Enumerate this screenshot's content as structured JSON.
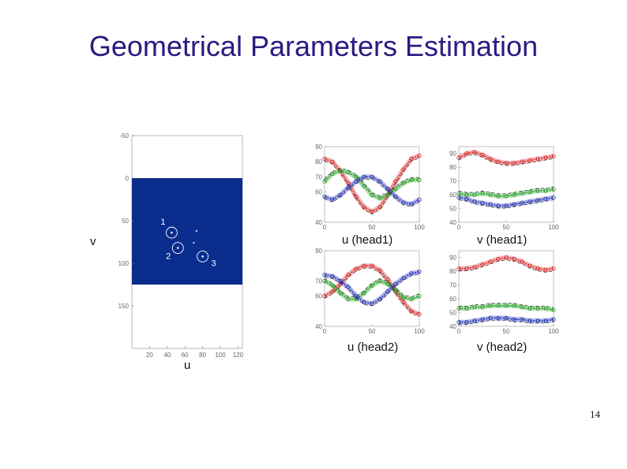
{
  "title": "Geometrical Parameters Estimation",
  "page_number": "14",
  "labels": {
    "v_axis": "v",
    "u_axis": "u",
    "u_head1": "u (head1)",
    "v_head1": "v (head1)",
    "u_head2": "u (head2)",
    "v_head2": "v (head2)"
  },
  "chart_data": [
    {
      "type": "image",
      "xticks": [
        "20",
        "40",
        "60",
        "80",
        "100",
        "120"
      ],
      "yticks": [
        "-50",
        "0",
        "50",
        "100",
        "150"
      ],
      "xlim": [
        0,
        125
      ],
      "ylim": [
        -50,
        200
      ],
      "region_y": [
        0,
        125
      ],
      "region_color": "#0a2c8c",
      "markers": [
        {
          "label": "1",
          "u": 45,
          "v": 64
        },
        {
          "label": "2",
          "u": 52,
          "v": 82
        },
        {
          "label": "3",
          "u": 80,
          "v": 92
        }
      ]
    },
    {
      "type": "line",
      "name": "u (head1)",
      "xticks": [
        "0",
        "50",
        "100"
      ],
      "yticks": [
        "90",
        "80",
        "70",
        "60",
        "40"
      ],
      "xlim": [
        0,
        100
      ],
      "ylim": [
        40,
        90
      ],
      "colors": [
        "#d42020",
        "#1a9a1a",
        "#1a2ab0"
      ],
      "series": [
        {
          "fn": "red",
          "values": [
            82,
            80,
            74,
            66,
            57,
            50,
            47,
            50,
            58,
            67,
            75,
            82,
            84
          ]
        },
        {
          "fn": "green",
          "values": [
            67,
            72,
            74,
            73,
            70,
            64,
            58,
            56,
            58,
            62,
            66,
            68,
            68
          ]
        },
        {
          "fn": "blue",
          "values": [
            57,
            55,
            58,
            63,
            67,
            70,
            70,
            67,
            62,
            57,
            53,
            52,
            55
          ]
        }
      ]
    },
    {
      "type": "line",
      "name": "v (head1)",
      "xticks": [
        "0",
        "50",
        "100"
      ],
      "yticks": [
        "90",
        "80",
        "70",
        "60",
        "50",
        "40"
      ],
      "xlim": [
        0,
        100
      ],
      "ylim": [
        40,
        95
      ],
      "colors": [
        "#d42020",
        "#1a9a1a",
        "#1a2ab0"
      ],
      "series": [
        {
          "fn": "red",
          "values": [
            87,
            90,
            91,
            89,
            86,
            84,
            83,
            83,
            84,
            85,
            86,
            87,
            88
          ]
        },
        {
          "fn": "green",
          "values": [
            61,
            60,
            60,
            61,
            60,
            59,
            59,
            60,
            61,
            62,
            63,
            63,
            64
          ]
        },
        {
          "fn": "blue",
          "values": [
            58,
            57,
            55,
            54,
            53,
            52,
            52,
            53,
            54,
            55,
            56,
            57,
            58
          ]
        }
      ]
    },
    {
      "type": "line",
      "name": "u (head2)",
      "xticks": [
        "0",
        "50",
        "100"
      ],
      "yticks": [
        "90",
        "70",
        "60",
        "40"
      ],
      "xlim": [
        0,
        100
      ],
      "ylim": [
        40,
        90
      ],
      "colors": [
        "#d42020",
        "#1a9a1a",
        "#1a2ab0"
      ],
      "series": [
        {
          "fn": "red",
          "values": [
            60,
            63,
            68,
            74,
            78,
            80,
            80,
            77,
            71,
            63,
            56,
            50,
            48
          ]
        },
        {
          "fn": "green",
          "values": [
            70,
            67,
            62,
            58,
            58,
            62,
            67,
            70,
            68,
            64,
            59,
            58,
            60
          ]
        },
        {
          "fn": "blue",
          "values": [
            74,
            73,
            70,
            66,
            60,
            56,
            55,
            58,
            63,
            68,
            72,
            75,
            76
          ]
        }
      ]
    },
    {
      "type": "line",
      "name": "v (head2)",
      "xticks": [
        "0",
        "50",
        "100"
      ],
      "yticks": [
        "90",
        "80",
        "70",
        "60",
        "50",
        "40"
      ],
      "xlim": [
        0,
        100
      ],
      "ylim": [
        40,
        95
      ],
      "colors": [
        "#d42020",
        "#1a9a1a",
        "#1a2ab0"
      ],
      "series": [
        {
          "fn": "red",
          "values": [
            82,
            82,
            83,
            85,
            87,
            89,
            90,
            89,
            87,
            84,
            82,
            81,
            82
          ]
        },
        {
          "fn": "green",
          "values": [
            53,
            53,
            54,
            54,
            55,
            55,
            55,
            55,
            54,
            53,
            53,
            53,
            52
          ]
        },
        {
          "fn": "blue",
          "values": [
            43,
            43,
            44,
            45,
            46,
            46,
            46,
            45,
            45,
            44,
            44,
            44,
            45
          ]
        }
      ]
    }
  ]
}
